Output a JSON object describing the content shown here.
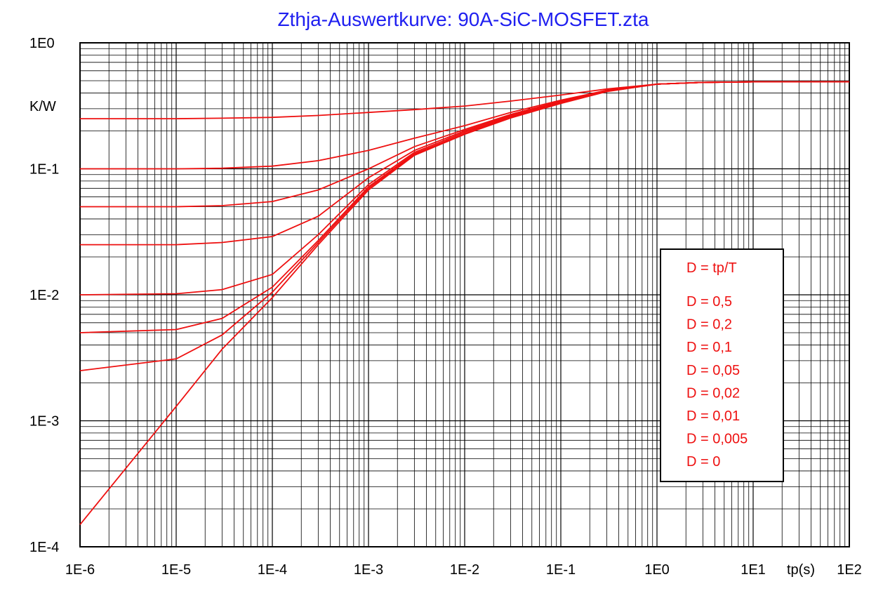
{
  "colors": {
    "title": "#1f1ff0",
    "series": "#ee1111",
    "grid": "#000000",
    "background": "#ffffff"
  },
  "chart_data": {
    "type": "line",
    "title": "Zthja-Auswertkurve: 90A-SiC-MOSFET.zta",
    "xlabel": "tp(s)",
    "ylabel": "K/W",
    "x_scale": "log",
    "y_scale": "log",
    "xlim": [
      1e-06,
      100
    ],
    "ylim": [
      0.0001,
      1
    ],
    "grid": true,
    "x_tick_labels": [
      "1E-6",
      "1E-5",
      "1E-4",
      "1E-3",
      "1E-2",
      "1E-1",
      "1E0",
      "1E1",
      "1E2"
    ],
    "y_tick_labels": [
      "1E-4",
      "1E-3",
      "1E-2",
      "1E-1",
      "1E0"
    ],
    "legend": {
      "position": "right",
      "header": "D = tp/T",
      "entries": [
        "D = 0,5",
        "D = 0,2",
        "D = 0,1",
        "D = 0,05",
        "D = 0,02",
        "D = 0,01",
        "D = 0,005",
        "D = 0"
      ]
    },
    "x": [
      1e-06,
      1e-05,
      3e-05,
      0.0001,
      0.0003,
      0.001,
      0.003,
      0.01,
      0.03,
      0.1,
      0.3,
      1,
      3,
      10,
      100
    ],
    "series": [
      {
        "name": "D = 0,5",
        "values": [
          0.25,
          0.25,
          0.252,
          0.256,
          0.265,
          0.28,
          0.295,
          0.315,
          0.345,
          0.385,
          0.43,
          0.47,
          0.485,
          0.49,
          0.49
        ]
      },
      {
        "name": "D = 0,2",
        "values": [
          0.1,
          0.1,
          0.101,
          0.105,
          0.116,
          0.14,
          0.175,
          0.22,
          0.28,
          0.35,
          0.42,
          0.47,
          0.485,
          0.49,
          0.49
        ]
      },
      {
        "name": "D = 0,1",
        "values": [
          0.05,
          0.05,
          0.051,
          0.055,
          0.068,
          0.1,
          0.15,
          0.205,
          0.27,
          0.345,
          0.42,
          0.47,
          0.485,
          0.49,
          0.49
        ]
      },
      {
        "name": "D = 0,05",
        "values": [
          0.025,
          0.025,
          0.026,
          0.029,
          0.042,
          0.085,
          0.14,
          0.2,
          0.265,
          0.34,
          0.415,
          0.47,
          0.485,
          0.49,
          0.49
        ]
      },
      {
        "name": "D = 0,02",
        "values": [
          0.01,
          0.0102,
          0.011,
          0.0145,
          0.03,
          0.075,
          0.135,
          0.195,
          0.26,
          0.335,
          0.415,
          0.47,
          0.485,
          0.49,
          0.49
        ]
      },
      {
        "name": "D = 0,01",
        "values": [
          0.005,
          0.0053,
          0.0065,
          0.0115,
          0.027,
          0.072,
          0.132,
          0.19,
          0.258,
          0.335,
          0.415,
          0.47,
          0.485,
          0.49,
          0.49
        ]
      },
      {
        "name": "D = 0,005",
        "values": [
          0.0025,
          0.0031,
          0.0048,
          0.0105,
          0.026,
          0.07,
          0.13,
          0.19,
          0.255,
          0.332,
          0.412,
          0.47,
          0.485,
          0.49,
          0.49
        ]
      },
      {
        "name": "D = 0",
        "values": [
          0.00015,
          0.0013,
          0.0037,
          0.0095,
          0.025,
          0.068,
          0.128,
          0.188,
          0.253,
          0.33,
          0.41,
          0.47,
          0.485,
          0.49,
          0.49
        ]
      }
    ]
  }
}
